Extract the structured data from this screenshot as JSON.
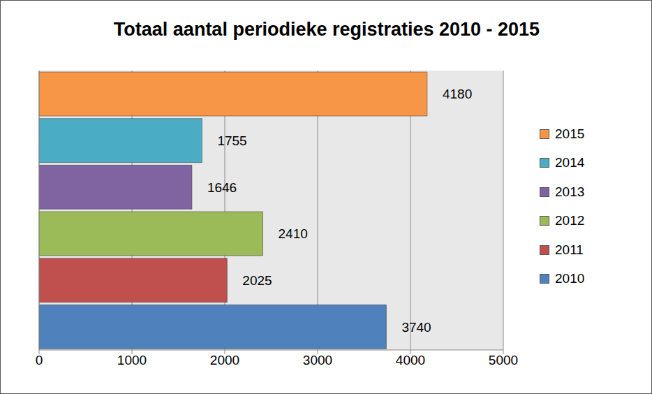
{
  "chart_data": {
    "type": "bar",
    "title": "Totaal aantal periodieke registraties 2010 - 2015",
    "orientation": "horizontal",
    "categories": [
      "2010",
      "2011",
      "2012",
      "2013",
      "2014",
      "2015"
    ],
    "values": [
      3740,
      2025,
      2410,
      1646,
      1755,
      4180
    ],
    "colors": [
      "#4f81bd",
      "#c0504d",
      "#9bbb59",
      "#8064a2",
      "#4bacc6",
      "#f79646"
    ],
    "xlim": [
      0,
      5000
    ],
    "xticks": [
      0,
      1000,
      2000,
      3000,
      4000,
      5000
    ],
    "grid": true,
    "data_labels": true,
    "tick_labels": "x",
    "legend": "right"
  }
}
